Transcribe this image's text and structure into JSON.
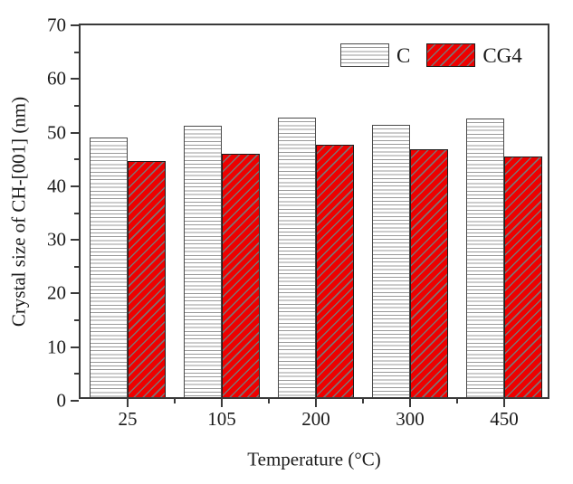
{
  "chart_data": {
    "type": "bar",
    "title": "",
    "xlabel": "Temperature (°C)",
    "ylabel": "Crystal size of CH-[001] (nm)",
    "categories": [
      "25",
      "105",
      "200",
      "300",
      "450"
    ],
    "series": [
      {
        "name": "C",
        "values": [
          48.4,
          50.6,
          52.2,
          50.8,
          51.9
        ],
        "fill": "#ffffff",
        "hatch": "horizontal-lines",
        "hatch_color": "#9a9a9a",
        "border": "#4a4a4a"
      },
      {
        "name": "CG4",
        "values": [
          44.0,
          45.3,
          47.0,
          46.2,
          44.9
        ],
        "fill": "#ee0000",
        "hatch": "diagonal-lines",
        "hatch_color": "rgba(20,0,0,0.55)",
        "border": "#1c1c1c"
      }
    ],
    "ylim": [
      0,
      70
    ],
    "y_major_step": 10,
    "y_minor_step": 5,
    "grid": false,
    "legend_position": "top-right-inside"
  }
}
